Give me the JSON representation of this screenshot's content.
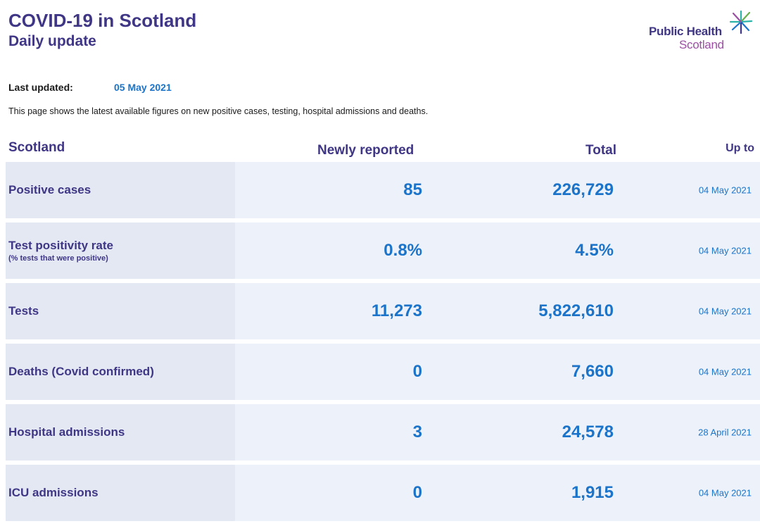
{
  "header": {
    "title": "COVID-19 in Scotland",
    "subtitle": "Daily update"
  },
  "logo": {
    "line1": "Public Health",
    "line2": "Scotland",
    "icon": "star-burst-icon"
  },
  "last_updated": {
    "label": "Last updated:",
    "value": "05 May 2021"
  },
  "intro": "This page shows the latest available figures on new positive cases, testing, hospital admissions and deaths.",
  "columns": {
    "label": "Scotland",
    "new": "Newly reported",
    "total": "Total",
    "upto": "Up to"
  },
  "rows": [
    {
      "label": "Positive cases",
      "note": "",
      "new": "85",
      "total": "226,729",
      "upto": "04 May 2021"
    },
    {
      "label": "Test positivity rate",
      "note": "(% tests that were positive)",
      "new": "0.8%",
      "total": "4.5%",
      "upto": "04 May 2021"
    },
    {
      "label": "Tests",
      "note": "",
      "new": "11,273",
      "total": "5,822,610",
      "upto": "04 May 2021"
    },
    {
      "label": "Deaths (Covid confirmed)",
      "note": "",
      "new": "0",
      "total": "7,660",
      "upto": "04 May 2021"
    },
    {
      "label": "Hospital admissions",
      "note": "",
      "new": "3",
      "total": "24,578",
      "upto": "28 April 2021"
    },
    {
      "label": "ICU admissions",
      "note": "",
      "new": "0",
      "total": "1,915",
      "upto": "04 May 2021"
    }
  ],
  "colors": {
    "heading": "#3f3685",
    "value": "#1b74c9",
    "row_bg": "#ecf1fa",
    "label_bg": "#e3e8f3",
    "logo_purple": "#9b4fa3"
  }
}
